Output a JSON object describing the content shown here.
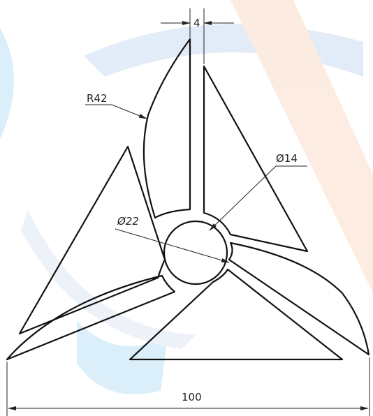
{
  "dimensions": {
    "gap": "4",
    "radius": "R42",
    "hub_inner": "Ø14",
    "hub_outer": "Ø22",
    "overall": "100"
  }
}
